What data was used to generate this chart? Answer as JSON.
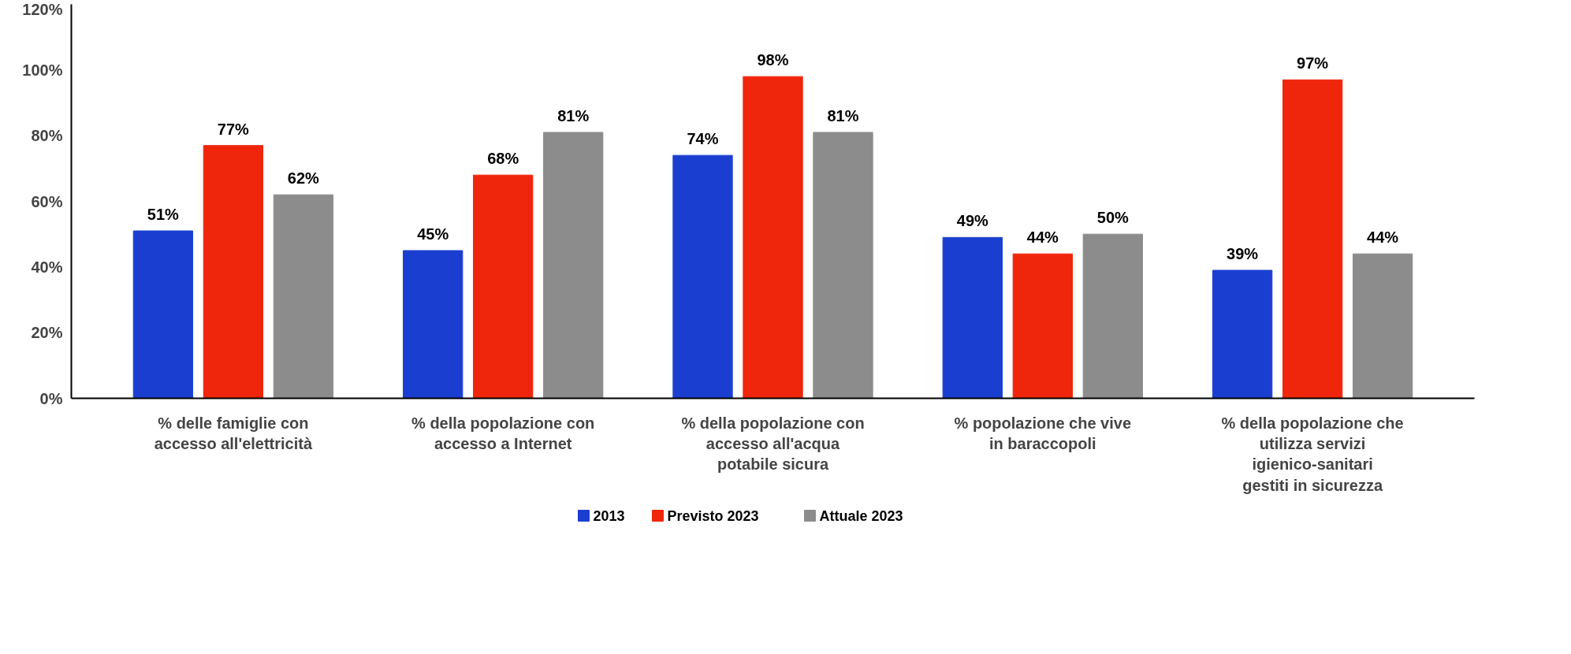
{
  "chart_data": {
    "type": "bar",
    "categories": [
      "% delle famiglie con accesso all'elettricità",
      "% della popolazione con accesso a Internet",
      "% della popolazione con accesso all'acqua potabile sicura",
      "% popolazione che vive in baraccopoli",
      "% della popolazione che utilizza servizi igienico-sanitari gestiti in sicurezza"
    ],
    "series": [
      {
        "name": "2013",
        "color": "#1a3fd0",
        "values": [
          51,
          45,
          74,
          49,
          39
        ],
        "value_labels": [
          "51%",
          "45%",
          "74%",
          "49%",
          "39%"
        ]
      },
      {
        "name": "Previsto 2023",
        "color": "#f0260c",
        "values": [
          77,
          68,
          98,
          44,
          97
        ],
        "value_labels": [
          "77%",
          "68%",
          "98%",
          "44%",
          "97%"
        ]
      },
      {
        "name": "Attuale 2023",
        "color": "#8c8c8c",
        "values": [
          62,
          81,
          81,
          50,
          44
        ],
        "value_labels": [
          "62%",
          "81%",
          "81%",
          "50%",
          "44%"
        ]
      }
    ],
    "ylim": [
      0,
      120
    ],
    "yticks": [
      {
        "value": 0,
        "label": "0%"
      },
      {
        "value": 20,
        "label": "20%"
      },
      {
        "value": 40,
        "label": "40%"
      },
      {
        "value": 60,
        "label": "60%"
      },
      {
        "value": 80,
        "label": "80%"
      },
      {
        "value": 100,
        "label": "100%"
      },
      {
        "value": 120,
        "label": "120%"
      }
    ],
    "grid": false,
    "legend": "bottom"
  }
}
